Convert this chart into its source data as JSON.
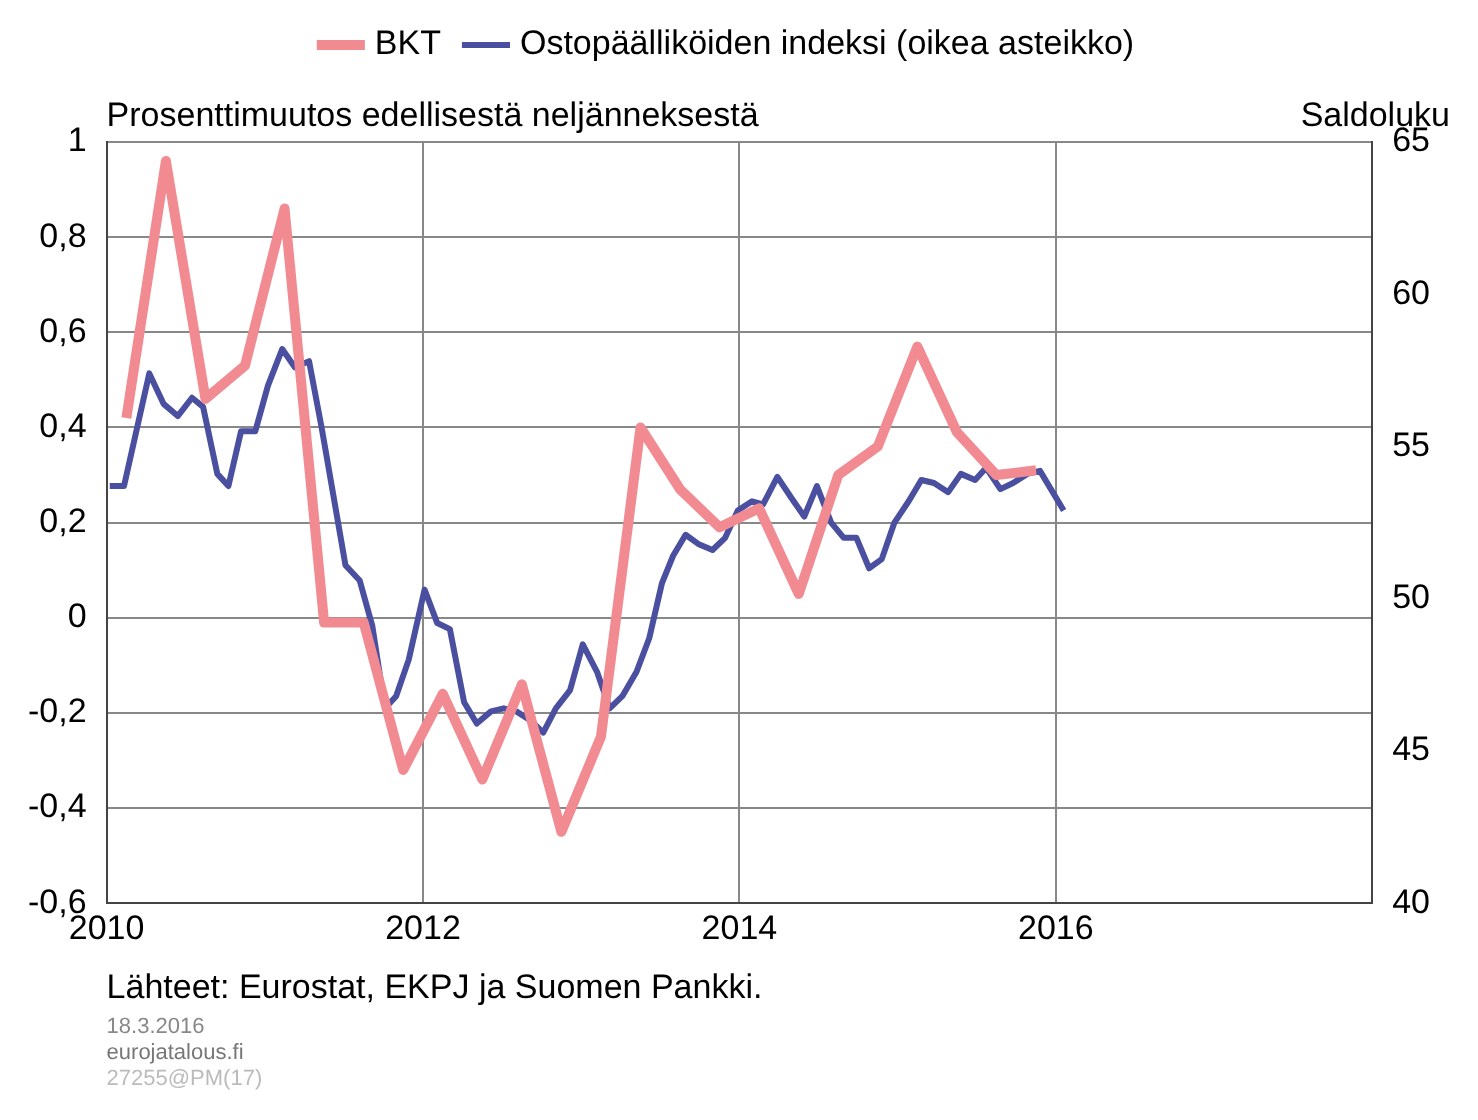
{
  "chart_data": {
    "type": "line",
    "ylabel": "Prosenttimuutos edellisestä neljänneksestä",
    "y2label": "Saldoluku",
    "xlim": [
      2010,
      2018
    ],
    "xticks": [
      2010,
      2012,
      2014,
      2016
    ],
    "ylim": [
      -0.6,
      1
    ],
    "yticks": [
      {
        "value": -0.6,
        "label": "-0,6"
      },
      {
        "value": -0.4,
        "label": "-0,4"
      },
      {
        "value": -0.2,
        "label": "-0,2"
      },
      0,
      {
        "value": 0.2,
        "label": "0,2"
      },
      {
        "value": 0.4,
        "label": "0,4"
      },
      {
        "value": 0.6,
        "label": "0,6"
      },
      {
        "value": 0.8,
        "label": "0,8"
      },
      1
    ],
    "y2lim": [
      40,
      65
    ],
    "y2ticks": [
      40,
      45,
      50,
      55,
      60,
      65
    ],
    "grid": true,
    "legend": "top",
    "marker": "none",
    "line_style": "solid",
    "series": [
      {
        "name": "BKT",
        "color": "#f28b91",
        "x": [
          2010.125,
          2010.375,
          2010.625,
          2010.875,
          2011.125,
          2011.375,
          2011.625,
          2011.875,
          2012.125,
          2012.375,
          2012.625,
          2012.875,
          2013.125,
          2013.375,
          2013.625,
          2013.875,
          2014.125,
          2014.375,
          2014.625,
          2014.875,
          2015.125,
          2015.375,
          2015.625,
          2015.875
        ],
        "values": [
          0.42,
          0.96,
          0.46,
          0.53,
          0.86,
          -0.01,
          -0.01,
          -0.32,
          -0.16,
          -0.34,
          -0.14,
          -0.45,
          -0.25,
          0.4,
          0.27,
          0.19,
          0.23,
          0.05,
          0.3,
          0.36,
          0.57,
          0.39,
          0.3,
          0.31
        ]
      },
      {
        "name": "Ostopäälliköiden indeksi (oikea asteikko)",
        "color": "#4a4fa0",
        "axis": "y2",
        "x": [
          2010.02,
          2010.11,
          2010.27,
          2010.36,
          2010.45,
          2010.54,
          2010.61,
          2010.7,
          2010.77,
          2010.85,
          2010.94,
          2011.02,
          2011.11,
          2011.19,
          2011.28,
          2011.36,
          2011.44,
          2011.51,
          2011.6,
          2011.68,
          2011.76,
          2011.83,
          2011.91,
          2012.01,
          2012.09,
          2012.17,
          2012.26,
          2012.34,
          2012.43,
          2012.51,
          2012.59,
          2012.68,
          2012.76,
          2012.84,
          2012.93,
          2013.01,
          2013.1,
          2013.18,
          2013.26,
          2013.35,
          2013.43,
          2013.51,
          2013.58,
          2013.66,
          2013.74,
          2013.83,
          2013.91,
          2013.99,
          2014.08,
          2014.15,
          2014.24,
          2014.33,
          2014.41,
          2014.49,
          2014.58,
          2014.66,
          2014.74,
          2014.82,
          2014.9,
          2014.98,
          2015.07,
          2015.15,
          2015.23,
          2015.32,
          2015.4,
          2015.49,
          2015.56,
          2015.65,
          2015.73,
          2015.82,
          2015.9,
          2016.05
        ],
        "values": [
          53.7,
          53.7,
          57.4,
          56.4,
          56.0,
          56.6,
          56.3,
          54.1,
          53.7,
          55.5,
          55.5,
          57.0,
          58.2,
          57.6,
          57.8,
          55.6,
          53.2,
          51.1,
          50.6,
          49.1,
          46.4,
          46.8,
          48.0,
          50.3,
          49.2,
          49.0,
          46.6,
          45.9,
          46.3,
          46.4,
          46.3,
          46.0,
          45.6,
          46.4,
          47.0,
          48.5,
          47.6,
          46.4,
          46.8,
          47.6,
          48.7,
          50.5,
          51.4,
          52.1,
          51.8,
          51.6,
          52.0,
          52.9,
          53.2,
          53.1,
          54.0,
          53.3,
          52.7,
          53.7,
          52.5,
          52.0,
          52.0,
          51.0,
          51.3,
          52.5,
          53.2,
          53.9,
          53.8,
          53.5,
          54.1,
          53.9,
          54.3,
          53.6,
          53.8,
          54.1,
          54.2,
          52.9
        ]
      }
    ],
    "annotations": [
      "Lähteet: Eurostat, EKPJ ja Suomen Pankki.",
      "18.3.2016",
      "eurojatalous.fi",
      "27255@PM(17)"
    ]
  }
}
